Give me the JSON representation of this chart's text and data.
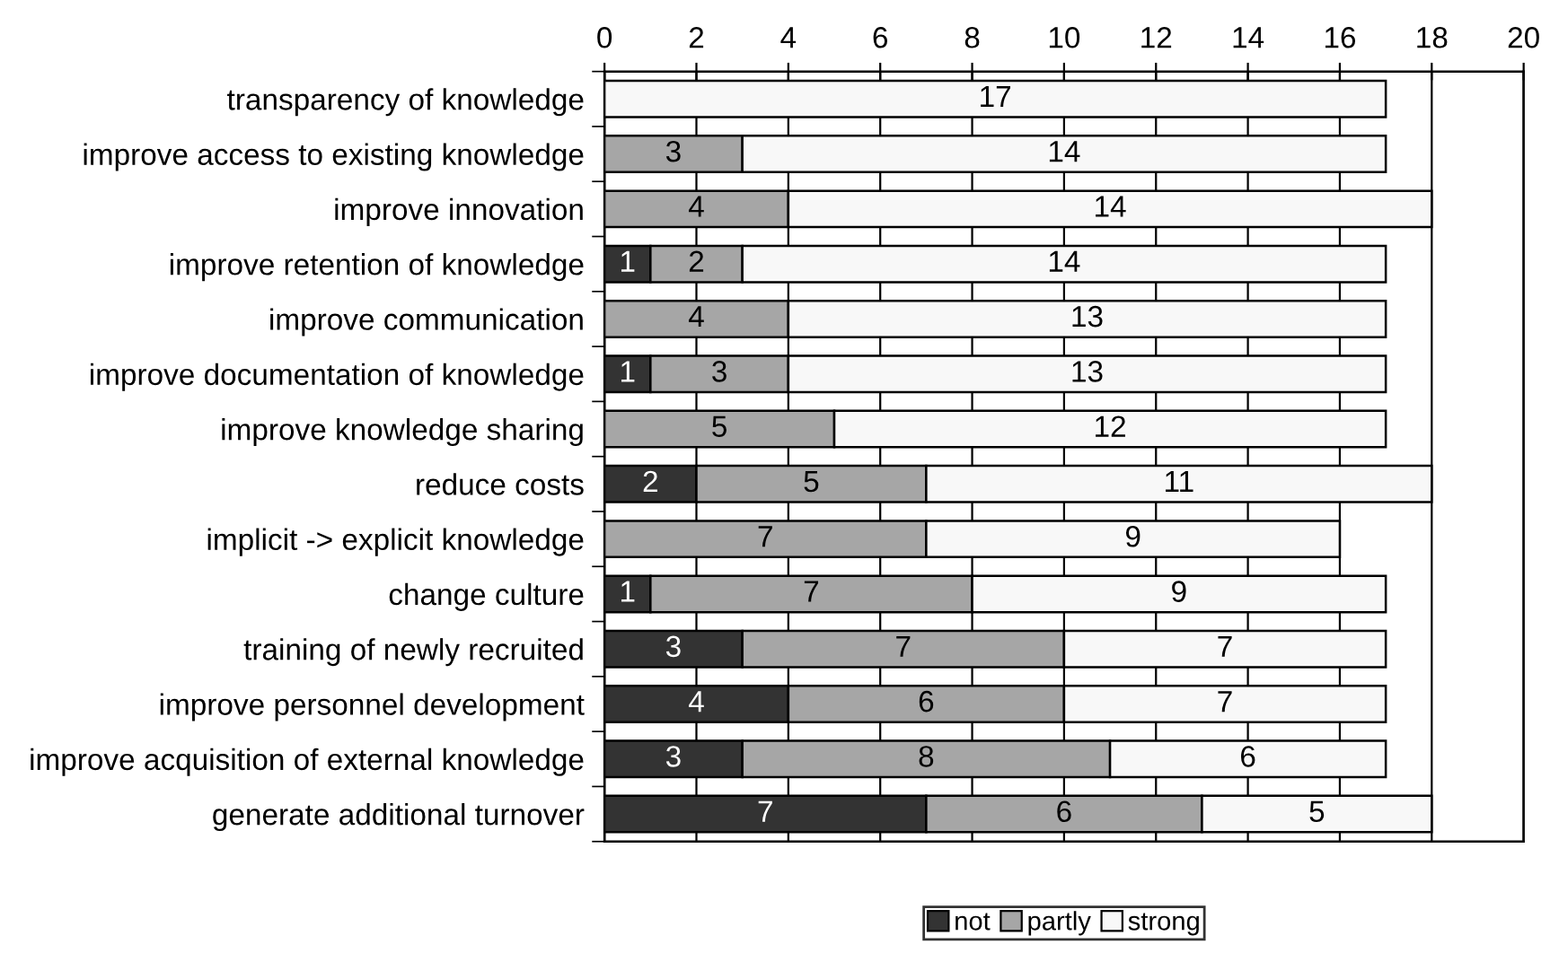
{
  "chart_data": {
    "type": "bar",
    "orientation": "horizontal",
    "stacked": true,
    "categories": [
      "transparency of knowledge",
      "improve access to existing knowledge",
      "improve innovation",
      "improve retention of knowledge",
      "improve communication",
      "improve documentation of knowledge",
      "improve knowledge sharing",
      "reduce costs",
      "implicit -> explicit knowledge",
      "change culture",
      "training of newly recruited",
      "improve personnel development",
      "improve acquisition of external knowledge",
      "generate additional turnover"
    ],
    "series": [
      {
        "name": "not",
        "color": "#333333",
        "values": [
          null,
          null,
          null,
          1,
          null,
          1,
          null,
          2,
          null,
          1,
          3,
          4,
          3,
          7
        ]
      },
      {
        "name": "partly",
        "color": "#a6a6a6",
        "values": [
          null,
          3,
          4,
          2,
          4,
          3,
          5,
          5,
          7,
          7,
          7,
          6,
          8,
          6
        ]
      },
      {
        "name": "strong",
        "color": "#f8f8f8",
        "values": [
          17,
          14,
          14,
          14,
          13,
          13,
          12,
          11,
          9,
          9,
          7,
          7,
          6,
          5
        ]
      }
    ],
    "xlim": [
      0,
      20
    ],
    "xticks": [
      0,
      2,
      4,
      6,
      8,
      10,
      12,
      14,
      16,
      18,
      20
    ],
    "grid": "x",
    "legend": "bottom",
    "data_labels": true
  }
}
